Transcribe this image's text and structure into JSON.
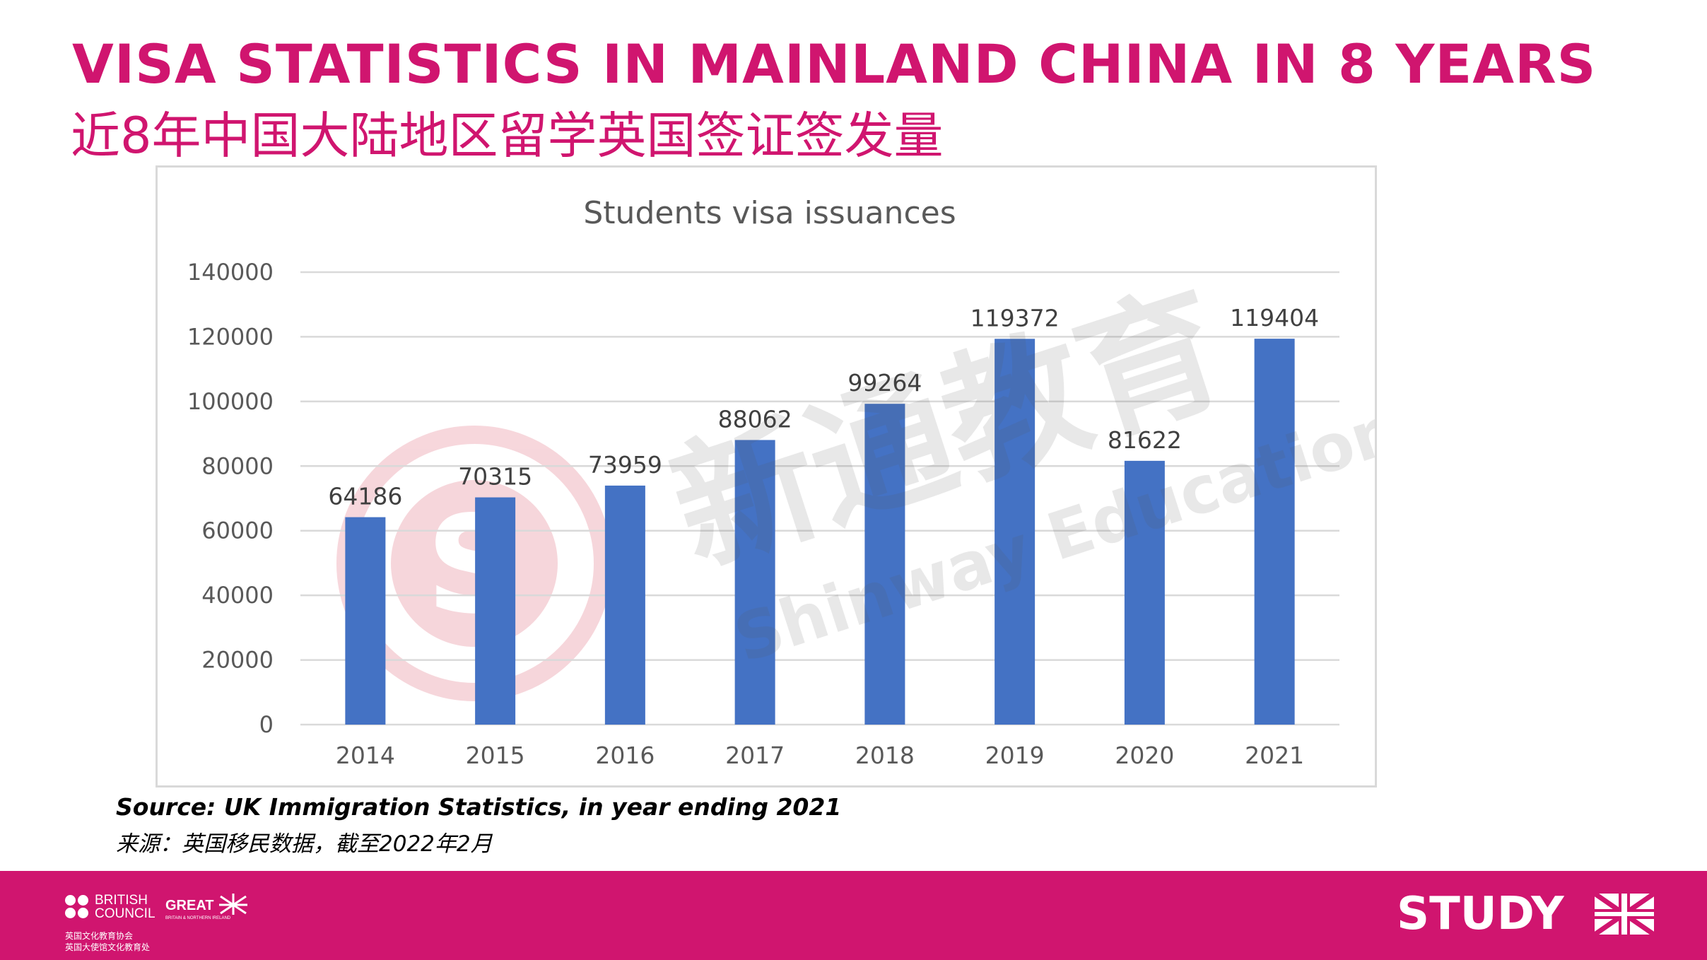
{
  "header": {
    "title_en": "VISA STATISTICS IN MAINLAND CHINA IN 8 YEARS",
    "title_cn": "近8年中国大陆地区留学英国签证签发量"
  },
  "watermark": {
    "cn": "新通教育",
    "en": "Shinway Education"
  },
  "chart_data": {
    "type": "bar",
    "title": "Students visa issuances",
    "xlabel": "",
    "ylabel": "",
    "categories": [
      "2014",
      "2015",
      "2016",
      "2017",
      "2018",
      "2019",
      "2020",
      "2021"
    ],
    "values": [
      64186,
      70315,
      73959,
      88062,
      99264,
      119372,
      81622,
      119404
    ],
    "ylim": [
      0,
      140000
    ],
    "yticks": [
      "0",
      "20000",
      "40000",
      "60000",
      "80000",
      "100000",
      "120000",
      "140000"
    ],
    "data_labels": true,
    "grid": true,
    "legend": "none",
    "bar_color": "#4472c4"
  },
  "source": {
    "en": "Source: UK Immigration Statistics, in year ending 2021",
    "cn": "来源：英国移民数据，截至2022年2月"
  },
  "footer": {
    "british_council": "BRITISH\nCOUNCIL",
    "great": "GREAT",
    "great_sub": "BRITAIN & NORTHERN IRELAND",
    "bc_cn": "英国文化教育协会\n英国大使馆文化教育处",
    "study": "STUDY",
    "accent_color": "#d0156f"
  }
}
